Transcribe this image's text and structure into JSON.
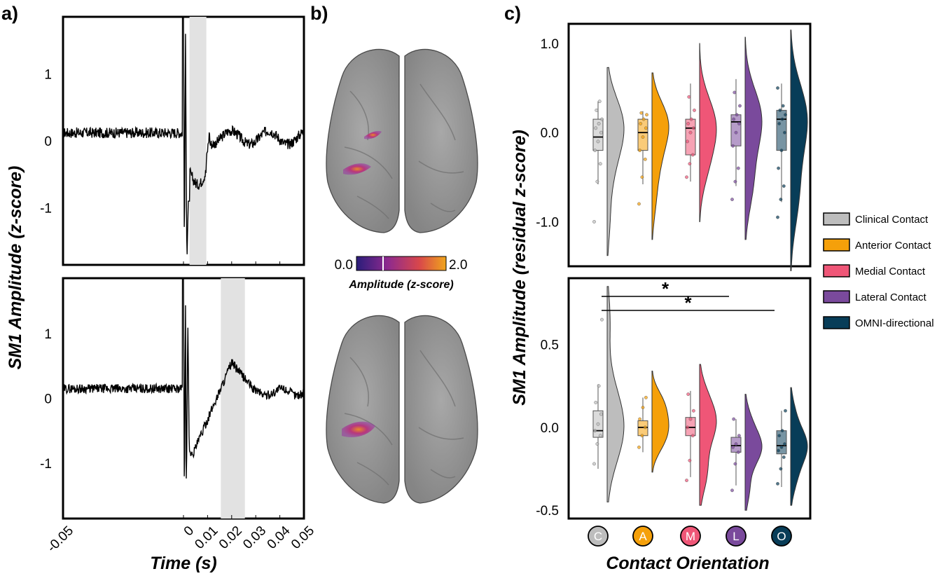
{
  "panel_labels": {
    "a": "a)",
    "b": "b)",
    "c": "c)"
  },
  "chart_data": [
    {
      "id": "a-top",
      "type": "line",
      "xlabel": "",
      "ylabel": "",
      "xlim": [
        -0.05,
        0.05
      ],
      "ylim": [
        -1.85,
        1.85
      ],
      "yticks": [
        "1",
        "0",
        "-1"
      ],
      "yticks_values": [
        1,
        0,
        -1
      ],
      "shaded_window": [
        0.0025,
        0.0095
      ],
      "series_description": "trace near 0.15 baseline, large stimulus artifact at 0, dip to about -0.6 within the shaded window, return to baseline around 0.1"
    },
    {
      "id": "a-bottom",
      "type": "line",
      "xlabel": "Time (s)",
      "shared_ylabel": "SM1 Amplitude (z-score)",
      "xlim": [
        -0.05,
        0.05
      ],
      "ylim": [
        -1.85,
        1.85
      ],
      "xticks": [
        "-0.05",
        "0",
        "0.01",
        "0.02",
        "0.03",
        "0.04",
        "0.05"
      ],
      "xticks_values": [
        -0.05,
        0,
        0.01,
        0.02,
        0.03,
        0.04,
        0.05
      ],
      "yticks": [
        "1",
        "0",
        "-1"
      ],
      "yticks_values": [
        1,
        0,
        -1
      ],
      "shaded_window": [
        0.0155,
        0.0255
      ],
      "series_description": "baseline about 0.15, artifact at 0, dip to about -0.85 right after, slow rise to a peak of about 0.6 near 0.02, return to about 0.15"
    },
    {
      "id": "b-colorbar",
      "type": "heatmap",
      "title": "Amplitude (z-score)",
      "range": [
        0.0,
        2.0
      ],
      "tick_labels": [
        "0.0",
        "2.0"
      ],
      "colors": [
        "#2a1d7a",
        "#8e2a8e",
        "#d8474b",
        "#f0a51c"
      ]
    },
    {
      "id": "c-top",
      "type": "scatter",
      "subtype": "raincloud",
      "xlabel": "",
      "ylabel": "",
      "ylim": [
        -1.5,
        1.22
      ],
      "yticks": [
        "1.0",
        "0.0",
        "-1.0"
      ],
      "yticks_values": [
        1.0,
        0.0,
        -1.0
      ],
      "categories": [
        "C",
        "A",
        "M",
        "L",
        "O"
      ],
      "series": [
        {
          "name": "Clinical Contact",
          "median": -0.05,
          "q1": -0.2,
          "q3": 0.15,
          "whisker_low": -0.58,
          "whisker_high": 0.35,
          "min": -1.38,
          "max": 0.73,
          "points": [
            -1.0,
            -0.55,
            -0.35,
            -0.2,
            -0.1,
            0.0,
            0.05,
            0.1,
            0.15,
            0.25,
            0.35
          ]
        },
        {
          "name": "Anterior Contact",
          "median": 0.0,
          "q1": -0.2,
          "q3": 0.15,
          "whisker_low": -0.58,
          "whisker_high": 0.24,
          "min": -1.2,
          "max": 0.67,
          "points": [
            -0.8,
            -0.5,
            -0.3,
            -0.2,
            -0.05,
            0.05,
            0.1,
            0.15,
            0.2,
            0.22
          ]
        },
        {
          "name": "Medial Contact",
          "median": 0.05,
          "q1": -0.25,
          "q3": 0.15,
          "whisker_low": -0.55,
          "whisker_high": 0.55,
          "min": -1.0,
          "max": 1.0,
          "points": [
            -0.5,
            -0.35,
            -0.25,
            -0.1,
            0.0,
            0.05,
            0.1,
            0.15,
            0.25,
            0.4
          ]
        },
        {
          "name": "Lateral Contact",
          "median": 0.12,
          "q1": -0.15,
          "q3": 0.2,
          "whisker_low": -0.6,
          "whisker_high": 0.6,
          "min": -1.2,
          "max": 1.07,
          "points": [
            -0.75,
            -0.55,
            -0.4,
            -0.15,
            0.0,
            0.1,
            0.15,
            0.2,
            0.3,
            0.45
          ]
        },
        {
          "name": "OMNI-directional",
          "median": 0.15,
          "q1": -0.2,
          "q3": 0.25,
          "whisker_low": -0.78,
          "whisker_high": 0.55,
          "min": -1.55,
          "max": 1.15,
          "points": [
            -0.95,
            -0.75,
            -0.6,
            -0.4,
            -0.2,
            0.0,
            0.1,
            0.15,
            0.2,
            0.25,
            0.3,
            0.5
          ]
        }
      ]
    },
    {
      "id": "c-bottom",
      "type": "scatter",
      "subtype": "raincloud",
      "xlabel": "Contact Orientation",
      "shared_ylabel": "SM1 Amplitude (residual z-score)",
      "ylim": [
        -0.55,
        0.9
      ],
      "yticks": [
        "0.5",
        "0.0",
        "-0.5"
      ],
      "yticks_values": [
        0.5,
        0.0,
        -0.5
      ],
      "categories": [
        "C",
        "A",
        "M",
        "L",
        "O"
      ],
      "significance": [
        {
          "from": "C",
          "to": "L",
          "label": "*"
        },
        {
          "from": "C",
          "to": "O",
          "label": "*"
        }
      ],
      "series": [
        {
          "name": "Clinical Contact",
          "median": -0.02,
          "q1": -0.06,
          "q3": 0.1,
          "whisker_low": -0.25,
          "whisker_high": 0.26,
          "min": -0.45,
          "max": 0.85,
          "points": [
            -0.22,
            -0.1,
            -0.05,
            -0.02,
            0.02,
            0.08,
            0.15,
            0.25,
            0.65
          ]
        },
        {
          "name": "Anterior Contact",
          "median": 0.0,
          "q1": -0.05,
          "q3": 0.04,
          "whisker_low": -0.15,
          "whisker_high": 0.18,
          "min": -0.27,
          "max": 0.34,
          "points": [
            -0.12,
            -0.05,
            0.0,
            0.05,
            0.12,
            0.18
          ]
        },
        {
          "name": "Medial Contact",
          "median": 0.0,
          "q1": -0.05,
          "q3": 0.06,
          "whisker_low": -0.3,
          "whisker_high": 0.22,
          "min": -0.47,
          "max": 0.38,
          "points": [
            -0.32,
            -0.2,
            -0.05,
            0.0,
            0.05,
            0.1,
            0.2
          ]
        },
        {
          "name": "Lateral Contact",
          "median": -0.11,
          "q1": -0.15,
          "q3": -0.06,
          "whisker_low": -0.35,
          "whisker_high": 0.05,
          "min": -0.5,
          "max": 0.2,
          "points": [
            -0.38,
            -0.22,
            -0.15,
            -0.12,
            -0.1,
            -0.05,
            0.05
          ]
        },
        {
          "name": "OMNI-directional",
          "median": -0.11,
          "q1": -0.16,
          "q3": -0.02,
          "whisker_low": -0.36,
          "whisker_high": 0.1,
          "min": -0.47,
          "max": 0.24,
          "points": [
            -0.34,
            -0.25,
            -0.18,
            -0.14,
            -0.12,
            -0.1,
            -0.05,
            -0.02,
            0.1
          ]
        }
      ]
    }
  ],
  "legend": {
    "items": [
      {
        "label": "Clinical Contact",
        "color": "#bdbdbd",
        "letter": "C"
      },
      {
        "label": "Anterior Contact",
        "color": "#f5a00a",
        "letter": "A"
      },
      {
        "label": "Medial Contact",
        "color": "#ef5677",
        "letter": "M"
      },
      {
        "label": "Lateral Contact",
        "color": "#7a4a9c",
        "letter": "L"
      },
      {
        "label": "OMNI-directional",
        "color": "#083d58",
        "letter": "O"
      }
    ]
  },
  "labels": {
    "a_ylabel": "SM1 Amplitude (z-score)",
    "a_xlabel": "Time (s)",
    "c_ylabel": "SM1 Amplitude (residual z-score)",
    "c_xlabel": "Contact Orientation",
    "cbar_label": "Amplitude (z-score)",
    "cbar_min": "0.0",
    "cbar_max": "2.0"
  }
}
